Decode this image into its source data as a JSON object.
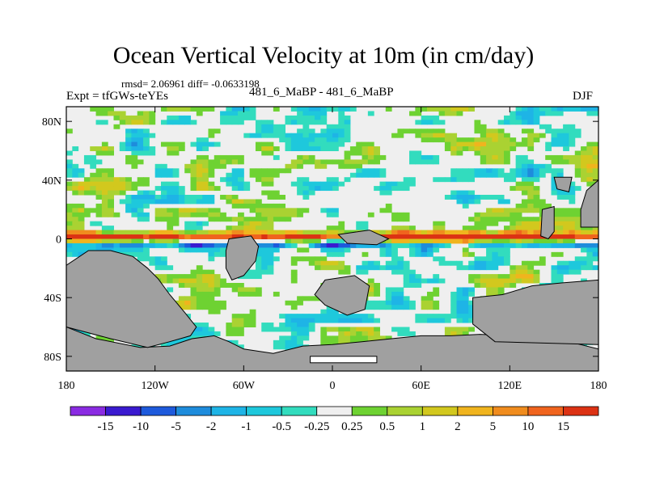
{
  "header": {
    "title": "Ocean Vertical Velocity at 10m (in cm/day)",
    "stats": "rmsd= 2.06961 diff= -0.0633198",
    "experiment": "Expt = tfGWs-teYEs",
    "comparison": "481_6_MaBP - 481_6_MaBP",
    "season": "DJF"
  },
  "chart_data": {
    "type": "heatmap",
    "title": "Ocean Vertical Velocity at 10m (in cm/day)",
    "xlabel": "",
    "ylabel": "",
    "x_ticks": [
      "180",
      "120W",
      "60W",
      "0",
      "60E",
      "120E",
      "180"
    ],
    "x_tick_values": [
      -180,
      -120,
      -60,
      0,
      60,
      120,
      180
    ],
    "y_ticks": [
      "80N",
      "40N",
      "0",
      "40S",
      "80S"
    ],
    "y_tick_values": [
      80,
      40,
      0,
      -40,
      -80
    ],
    "xlim": [
      -180,
      180
    ],
    "ylim": [
      -90,
      90
    ],
    "colorbar": {
      "labels": [
        "-15",
        "-10",
        "-5",
        "-2",
        "-1",
        "-0.5",
        "-0.25",
        "0.25",
        "0.5",
        "1",
        "2",
        "5",
        "10",
        "15"
      ],
      "colors": [
        "#8a2be2",
        "#3a1ad0",
        "#1e5adc",
        "#1e8cdc",
        "#1eb4e6",
        "#1ec8dc",
        "#32dcbe",
        "#efefef",
        "#6ed232",
        "#aad232",
        "#d2c81e",
        "#f0b41e",
        "#f08c1e",
        "#f0641e",
        "#dc3214"
      ]
    },
    "land_color": "#a0a0a0"
  }
}
